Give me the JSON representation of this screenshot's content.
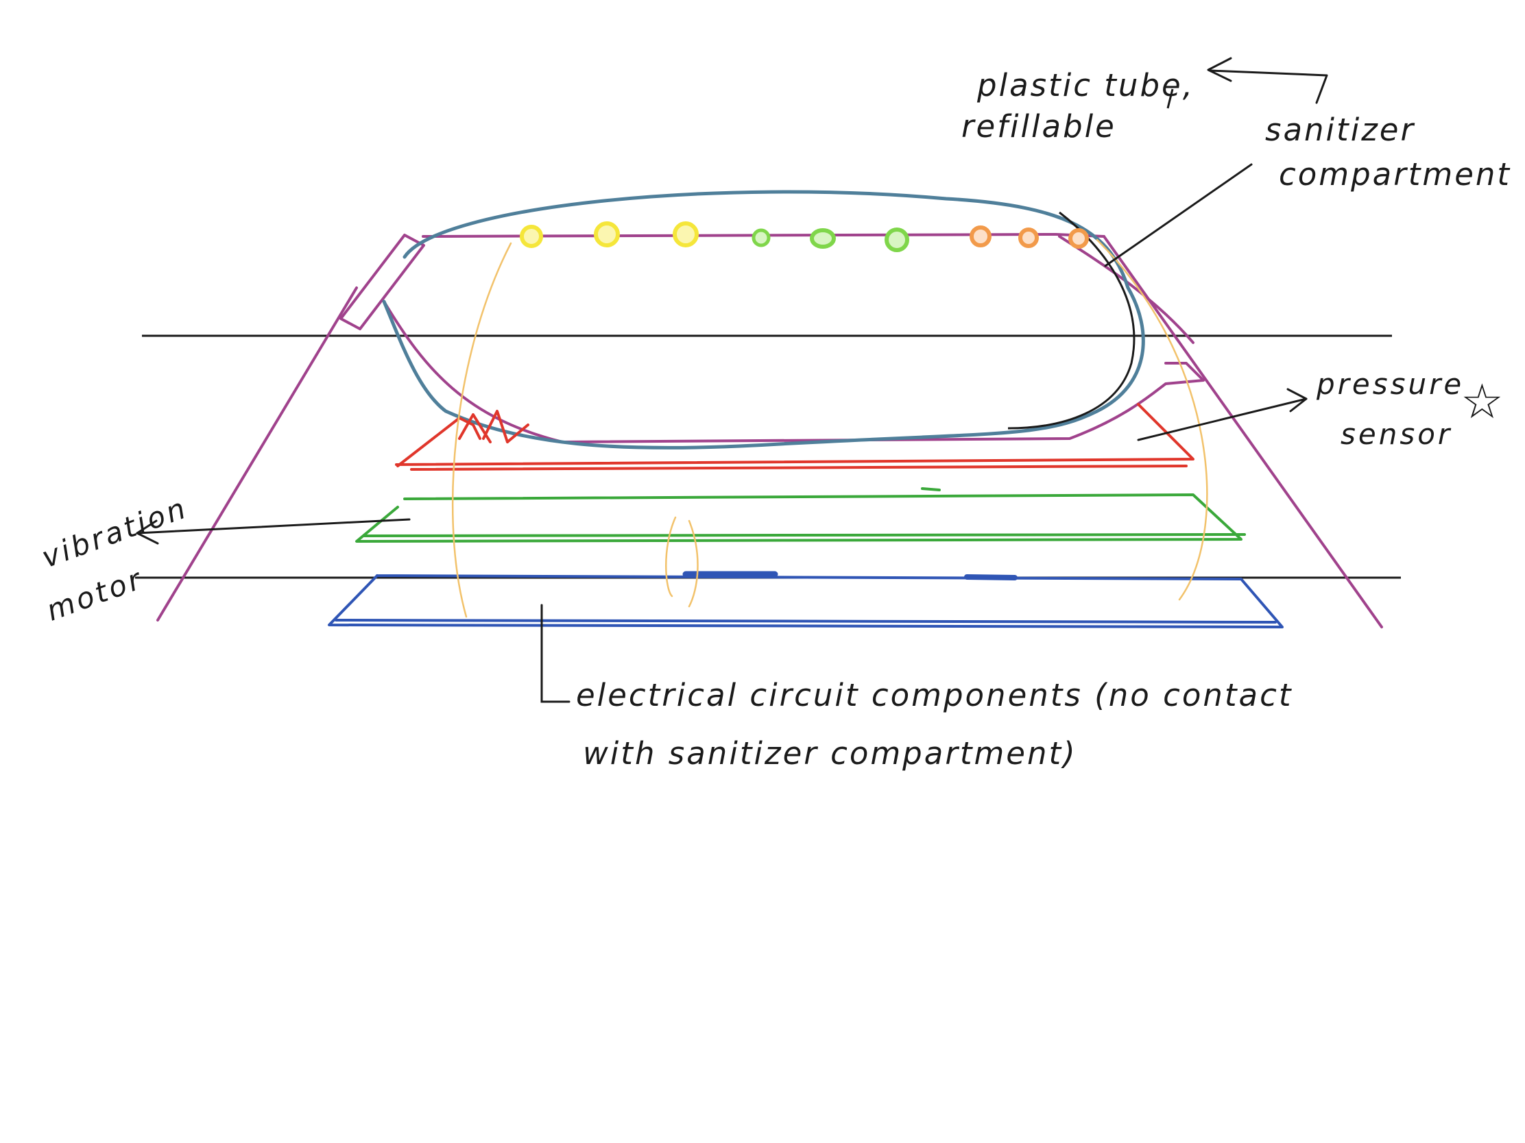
{
  "labels": {
    "plastic_tube_line1": "plastic tube,",
    "plastic_tube_line2": "refillable",
    "sanitizer_line1": "sanitizer",
    "sanitizer_line2": "compartment",
    "pressure_line1": "pressure",
    "pressure_line2": "sensor",
    "pressure_mark": "☆",
    "vibration_line1": "vibration",
    "vibration_line2": "motor",
    "electrical_line1": "electrical circuit components (no contact",
    "electrical_line2": "with sanitizer compartment)"
  },
  "colors": {
    "ink": "#1a1a1a",
    "outer_shell": "#a0428c",
    "tube_outline": "#4f7f9a",
    "pressure_layer": "#e0362b",
    "vibration_layer": "#3aa83a",
    "circuit_layer": "#2f55b5",
    "wire": "#f2c26b",
    "led_yellow": "#f5e63a",
    "led_green": "#7fd64a",
    "led_orange": "#f29a4a"
  },
  "leds": [
    {
      "color": "yellow"
    },
    {
      "color": "yellow"
    },
    {
      "color": "yellow"
    },
    {
      "color": "green"
    },
    {
      "color": "green"
    },
    {
      "color": "green"
    },
    {
      "color": "orange"
    },
    {
      "color": "orange"
    },
    {
      "color": "orange"
    }
  ]
}
